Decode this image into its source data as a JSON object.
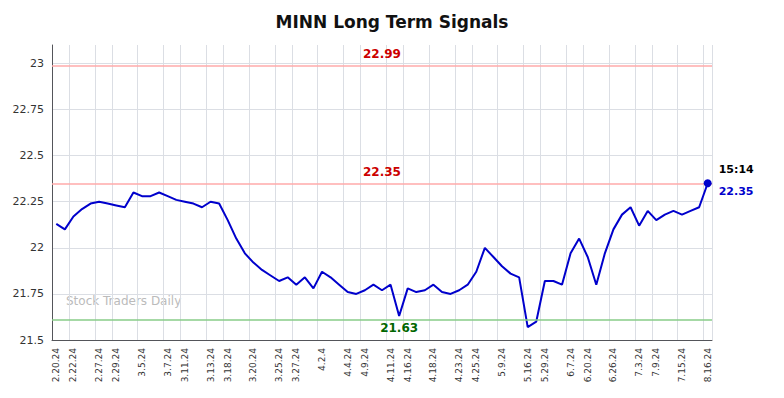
{
  "chart_data": {
    "type": "line",
    "title": "MINN Long Term Signals",
    "categories": [
      "2.20.24",
      null,
      "2.22.24",
      null,
      null,
      "2.27.24",
      null,
      "2.29.24",
      null,
      null,
      "3.5.24",
      null,
      null,
      "3.7.24",
      null,
      "3.11.24",
      null,
      null,
      "3.13.24",
      null,
      "3.18.24",
      null,
      null,
      "3.20.24",
      null,
      null,
      "3.25.24",
      null,
      "3.27.24",
      null,
      null,
      "4.2.4",
      null,
      null,
      "4.4.24",
      null,
      "4.9.24",
      null,
      null,
      "4.11.24",
      null,
      "4.16.24",
      null,
      null,
      "4.18.24",
      null,
      null,
      "4.23.24",
      null,
      "4.25.24",
      null,
      null,
      "5.9.24",
      null,
      null,
      "5.16.24",
      null,
      "5.29.24",
      null,
      null,
      "6.7.24",
      null,
      "6.20.24",
      null,
      null,
      "6.26.24",
      null,
      null,
      "7.3.24",
      null,
      "7.9.24",
      null,
      null,
      "7.15.24",
      null,
      null,
      "8.16.24"
    ],
    "values": [
      22.13,
      22.1,
      22.17,
      22.21,
      22.24,
      22.25,
      22.24,
      22.23,
      22.22,
      22.3,
      22.28,
      22.28,
      22.3,
      22.28,
      22.26,
      22.25,
      22.24,
      22.22,
      22.25,
      22.24,
      22.15,
      22.05,
      21.97,
      21.92,
      21.88,
      21.85,
      21.82,
      21.84,
      21.8,
      21.84,
      21.78,
      21.87,
      21.84,
      21.8,
      21.76,
      21.75,
      21.77,
      21.8,
      21.77,
      21.8,
      21.63,
      21.78,
      21.76,
      21.77,
      21.8,
      21.76,
      21.75,
      21.77,
      21.8,
      21.87,
      22.0,
      21.95,
      21.9,
      21.86,
      21.84,
      21.57,
      21.6,
      21.82,
      21.82,
      21.8,
      21.97,
      22.05,
      21.95,
      21.8,
      21.97,
      22.1,
      22.18,
      22.22,
      22.12,
      22.2,
      22.15,
      22.18,
      22.2,
      22.18,
      22.2,
      22.22,
      22.35
    ],
    "color": "#0000cc",
    "ylim": [
      21.5,
      23.1
    ],
    "yticks": [
      21.5,
      21.75,
      22,
      22.25,
      22.5,
      22.75,
      23
    ],
    "grid": true,
    "reference_lines": [
      {
        "value": 22.99,
        "color": "#ffaaaa",
        "label": "22.99",
        "label_color": "#cc0000"
      },
      {
        "value": 22.35,
        "color": "#ffaaaa",
        "label": "22.35",
        "label_color": "#cc0000"
      },
      {
        "value": 21.615,
        "color": "#88cc88"
      }
    ],
    "annotations": [
      {
        "text": "21.63",
        "index": 40,
        "color": "#006600"
      }
    ],
    "end_label": {
      "time": "15:14",
      "value": "22.35"
    },
    "watermark": {
      "text": "Stock Traders Daily",
      "color": "#bbbbbb"
    }
  }
}
